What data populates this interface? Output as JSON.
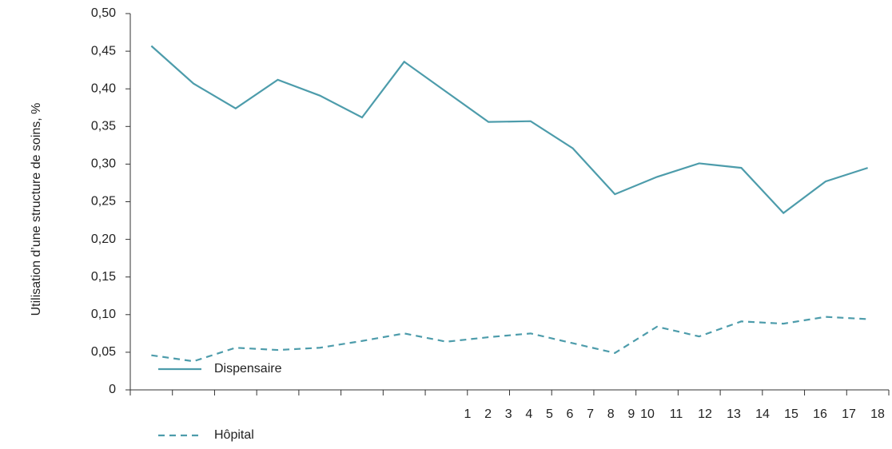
{
  "chart_data": {
    "type": "line",
    "y_label": "Utilisation d’une structure de soins, %",
    "categories": [
      "1",
      "2",
      "3",
      "4",
      "5",
      "6",
      "7",
      "8",
      "9",
      "10",
      "11",
      "12",
      "13",
      "14",
      "15",
      "16",
      "17",
      "18"
    ],
    "series": [
      {
        "name": "Dispensaire",
        "color": "#4d9cab",
        "style": "solid",
        "values": [
          0.457,
          0.407,
          0.374,
          0.412,
          0.391,
          0.362,
          0.436,
          0.396,
          0.356,
          0.357,
          0.321,
          0.26,
          0.283,
          0.301,
          0.295,
          0.235,
          0.277,
          0.295
        ]
      },
      {
        "name": "Hôpital",
        "color": "#4d9cab",
        "style": "dashed",
        "values": [
          0.046,
          0.038,
          0.056,
          0.053,
          0.056,
          0.065,
          0.075,
          0.064,
          0.07,
          0.075,
          0.062,
          0.049,
          0.084,
          0.071,
          0.091,
          0.088,
          0.097,
          0.094
        ]
      }
    ],
    "ylim": [
      0,
      0.5
    ],
    "yticks": [
      0,
      {
        "value": 0.05,
        "label": "0,05"
      },
      {
        "value": 0.1,
        "label": "0,10"
      },
      {
        "value": 0.15,
        "label": "0,15"
      },
      {
        "value": 0.2,
        "label": "0,20"
      },
      {
        "value": 0.25,
        "label": "0,25"
      },
      {
        "value": 0.3,
        "label": "0,30"
      },
      {
        "value": 0.35,
        "label": "0,35"
      },
      {
        "value": 0.4,
        "label": "0,40"
      },
      {
        "value": 0.45,
        "label": "0,45"
      },
      {
        "value": 0.5,
        "label": "0,50"
      }
    ],
    "grid": false,
    "legend": "bottom-left"
  }
}
